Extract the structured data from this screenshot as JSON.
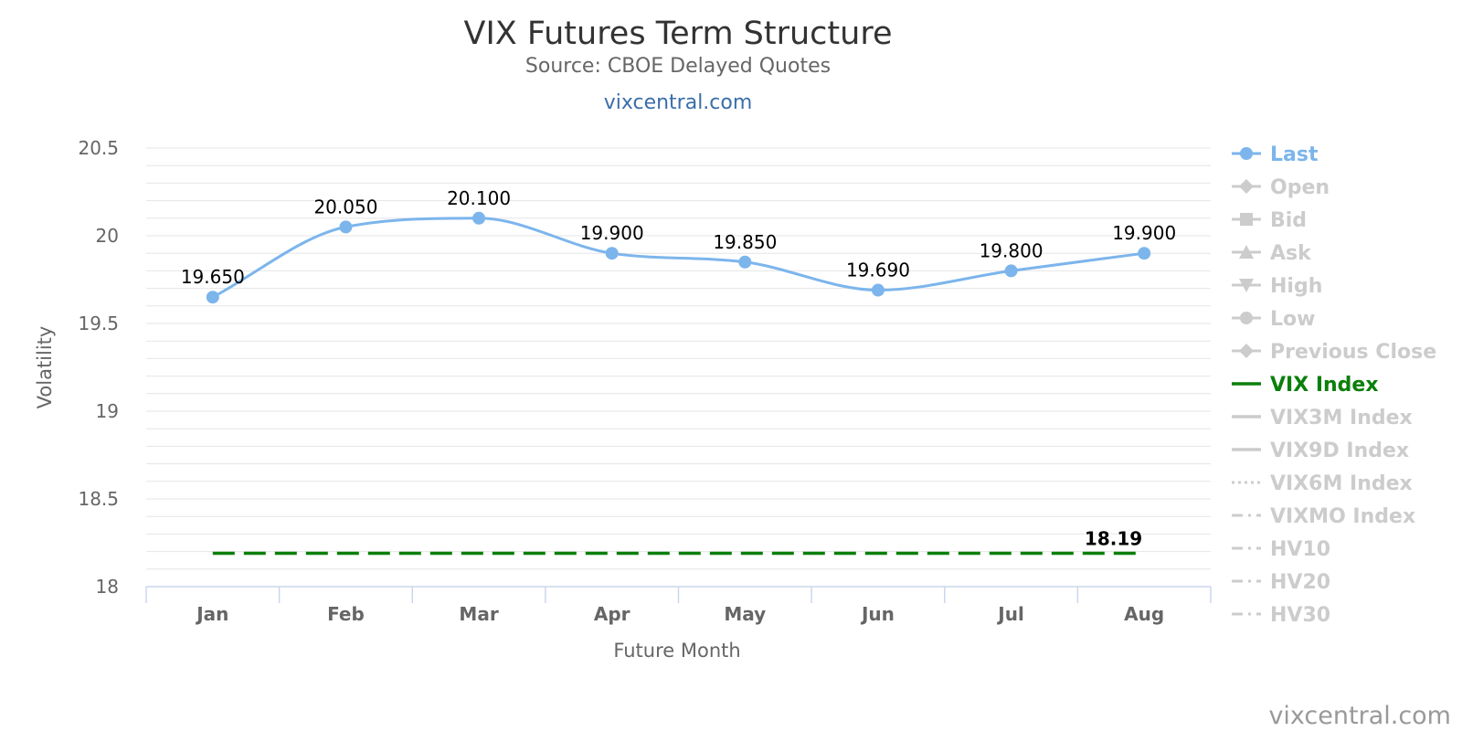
{
  "chart_data": {
    "type": "line",
    "title": "VIX Futures Term Structure",
    "subtitle": "Source: CBOE Delayed Quotes",
    "site_link": "vixcentral.com",
    "credits": "vixcentral.com",
    "xlabel": "Future Month",
    "ylabel": "Volatility",
    "categories": [
      "Jan",
      "Feb",
      "Mar",
      "Apr",
      "May",
      "Jun",
      "Jul",
      "Aug"
    ],
    "ylim": [
      18,
      20.5
    ],
    "yticks": [
      18,
      18.5,
      19,
      19.5,
      20,
      20.5
    ],
    "ytick_labels": [
      "18",
      "18.5",
      "19",
      "19.5",
      "20",
      "20.5"
    ],
    "grid": true,
    "legend_position": "right",
    "series": [
      {
        "name": "Last",
        "values": [
          19.65,
          20.05,
          20.1,
          19.9,
          19.85,
          19.69,
          19.8,
          19.9
        ],
        "labels": [
          "19.650",
          "20.050",
          "20.100",
          "19.900",
          "19.850",
          "19.690",
          "19.800",
          "19.900"
        ],
        "color": "#7cb5ec"
      },
      {
        "name": "VIX Index",
        "values": [
          18.19,
          18.19,
          18.19,
          18.19,
          18.19,
          18.19,
          18.19,
          18.19
        ],
        "label": "18.19",
        "color": "#0b7f0b",
        "dash": "dashed"
      }
    ],
    "legend": [
      {
        "name": "Last",
        "active": true,
        "symbol": "circle",
        "color": "#7cb5ec"
      },
      {
        "name": "Open",
        "active": false,
        "symbol": "diamond"
      },
      {
        "name": "Bid",
        "active": false,
        "symbol": "square"
      },
      {
        "name": "Ask",
        "active": false,
        "symbol": "triangle"
      },
      {
        "name": "High",
        "active": false,
        "symbol": "triangle-down"
      },
      {
        "name": "Low",
        "active": false,
        "symbol": "circle"
      },
      {
        "name": "Previous Close",
        "active": false,
        "symbol": "diamond"
      },
      {
        "name": "VIX Index",
        "active": true,
        "symbol": "line",
        "color": "#0b7f0b"
      },
      {
        "name": "VIX3M Index",
        "active": false,
        "symbol": "line"
      },
      {
        "name": "VIX9D Index",
        "active": false,
        "symbol": "line"
      },
      {
        "name": "VIX6M Index",
        "active": false,
        "symbol": "dotted"
      },
      {
        "name": "VIXMO Index",
        "active": false,
        "symbol": "dashdot"
      },
      {
        "name": "HV10",
        "active": false,
        "symbol": "dashdot"
      },
      {
        "name": "HV20",
        "active": false,
        "symbol": "dashdot"
      },
      {
        "name": "HV30",
        "active": false,
        "symbol": "dashdot"
      }
    ],
    "colors": {
      "inactive_legend": "#cccccc",
      "active_legend_text": "#333333",
      "grid": "#e6e6e6",
      "axis": "#ccd6eb"
    }
  }
}
